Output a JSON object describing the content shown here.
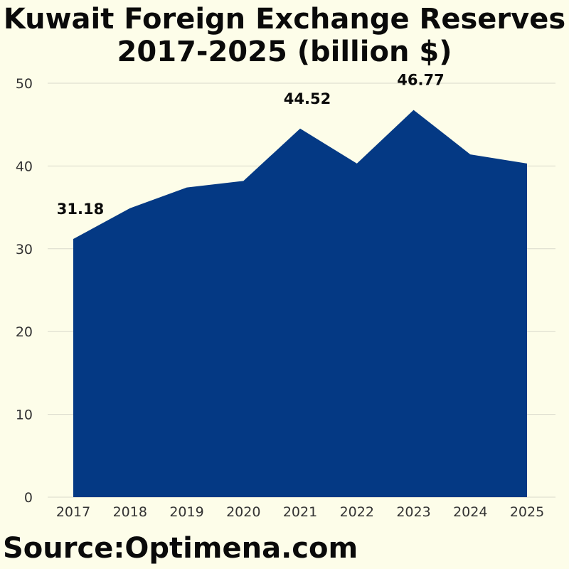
{
  "title_lines": [
    "Kuwait Foreign Exchange Reserves",
    "2017-2025 (billion $)"
  ],
  "source": "Source:Optimena.com",
  "colors": {
    "area": "#043984",
    "background": "#fdfde9",
    "grid": "#d9d9cc"
  },
  "chart_data": {
    "type": "area",
    "title": "Kuwait Foreign Exchange Reserves 2017-2025 (billion $)",
    "xlabel": "",
    "ylabel": "",
    "categories": [
      "2017",
      "2018",
      "2019",
      "2020",
      "2021",
      "2022",
      "2023",
      "2024",
      "2025"
    ],
    "values": [
      31.18,
      34.9,
      37.4,
      38.2,
      44.52,
      40.3,
      46.77,
      41.4,
      40.3
    ],
    "data_labels": {
      "0": "31.18",
      "4": "44.52",
      "6": "46.77"
    },
    "ylim": [
      0,
      50
    ],
    "yticks": [
      0,
      10,
      20,
      30,
      40,
      50
    ],
    "grid": true,
    "legend": "none"
  }
}
